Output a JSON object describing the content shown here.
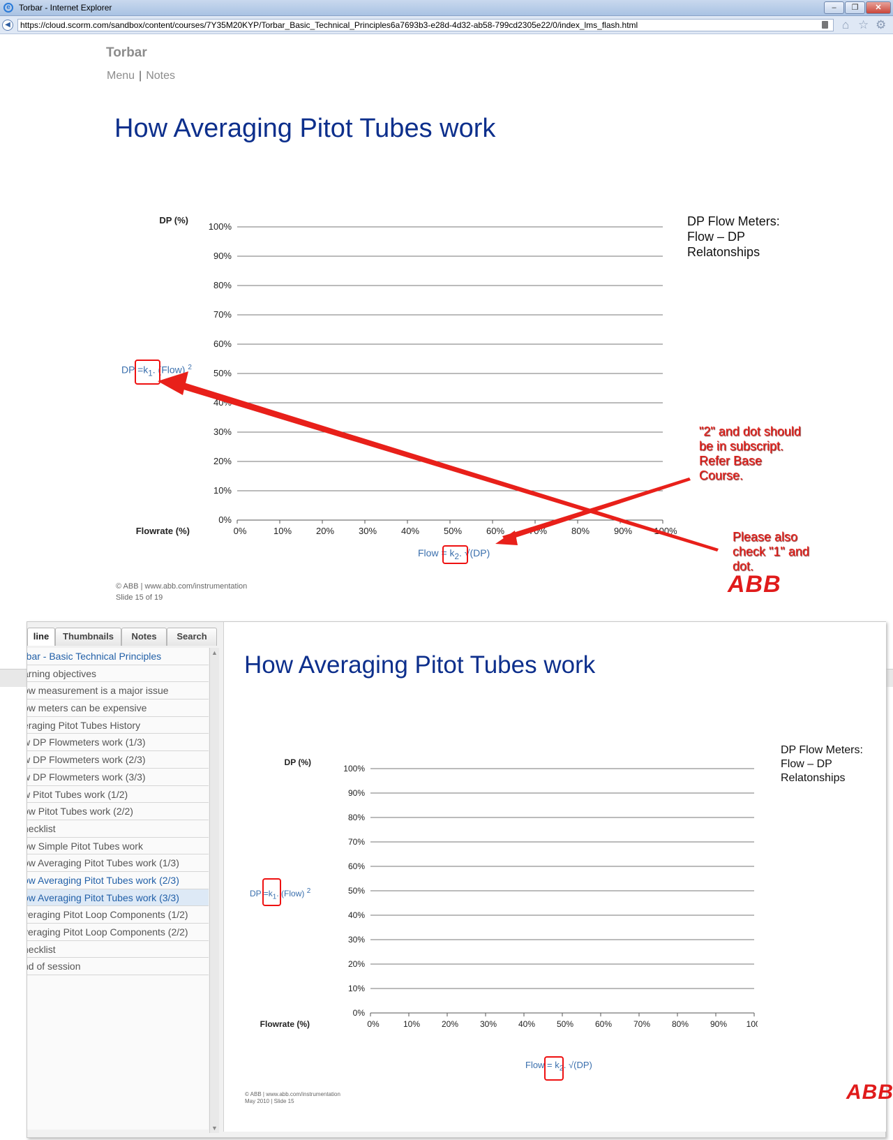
{
  "window": {
    "title": "Torbar - Internet Explorer",
    "url": "https://cloud.scorm.com/sandbox/content/courses/7Y35M20KYP/Torbar_Basic_Technical_Principles6a7693b3-e28d-4d32-ab58-799cd2305e22/0/index_lms_flash.html",
    "buttons": {
      "min": "–",
      "max": "❐",
      "close": "✕"
    }
  },
  "course": {
    "title": "Torbar",
    "nav_menu": "Menu",
    "nav_sep": "|",
    "nav_notes": "Notes"
  },
  "slide": {
    "title": "How Averaging Pitot Tubes work",
    "side_note_lines": [
      "DP Flow Meters:",
      "Flow – DP",
      "Relatonships"
    ],
    "formula_dp_prefix": "DP =k",
    "formula_dp_sub": "1",
    "formula_dp_mid": ". (Flow)",
    "formula_dp_sup": "2",
    "formula_flow_prefix": "Flow = k",
    "formula_flow_sub": "2",
    "formula_flow_mid": ". √(DP)",
    "copyright_line1": "© ABB | www.abb.com/instrumentation",
    "copyright_line2": "Slide 15 of 19",
    "copyright2_line1": "© ABB | www.abb.com/instrumentation",
    "copyright2_line2": "May 2010 | Slide 15",
    "logo": "ABB"
  },
  "annotations": {
    "note1": "\"2\" and dot should be in subscript. Refer Base Course.",
    "note2": "Please also check \"1\" and dot."
  },
  "chart_data": [
    {
      "type": "line",
      "title": "",
      "ylabel": "DP (%)",
      "xlabel": "Flowrate (%)",
      "x_ticks": [
        "0%",
        "10%",
        "20%",
        "30%",
        "40%",
        "50%",
        "60%",
        "70%",
        "80%",
        "90%",
        "100%"
      ],
      "y_ticks": [
        "0%",
        "10%",
        "20%",
        "30%",
        "40%",
        "50%",
        "60%",
        "70%",
        "80%",
        "90%",
        "100%"
      ],
      "xlim": [
        0,
        100
      ],
      "ylim": [
        0,
        100
      ],
      "grid": "horizontal",
      "series": []
    }
  ],
  "player": {
    "tabs": [
      "line",
      "Thumbnails",
      "Notes",
      "Search"
    ],
    "outline": [
      {
        "label": "rbar - Basic Technical Principles",
        "state": "link"
      },
      {
        "label": "arning objectives",
        "state": ""
      },
      {
        "label": "ow measurement is a major issue",
        "state": ""
      },
      {
        "label": "ow meters can be expensive",
        "state": ""
      },
      {
        "label": "eraging Pitot Tubes History",
        "state": ""
      },
      {
        "label": "w DP Flowmeters work (1/3)",
        "state": ""
      },
      {
        "label": "w DP Flowmeters work (2/3)",
        "state": ""
      },
      {
        "label": "w DP Flowmeters work (3/3)",
        "state": ""
      },
      {
        "label": "w Pitot Tubes work (1/2)",
        "state": ""
      },
      {
        "label": "ow Pitot Tubes work (2/2)",
        "state": ""
      },
      {
        "label": "hecklist",
        "state": ""
      },
      {
        "label": "ow Simple Pitot Tubes work",
        "state": ""
      },
      {
        "label": "ow Averaging Pitot Tubes work (1/3)",
        "state": ""
      },
      {
        "label": "ow Averaging Pitot Tubes work (2/3)",
        "state": "link"
      },
      {
        "label": "ow Averaging Pitot Tubes work (3/3)",
        "state": "selected"
      },
      {
        "label": "veraging Pitot Loop Components (1/2)",
        "state": ""
      },
      {
        "label": "veraging Pitot Loop Components (2/2)",
        "state": ""
      },
      {
        "label": "hecklist",
        "state": ""
      },
      {
        "label": "nd of session",
        "state": ""
      }
    ]
  },
  "colors": {
    "title_blue": "#0d2f8c",
    "formula_blue": "#3a6fad",
    "annotation_red": "#e8201a",
    "abb_red": "#e01b1b"
  }
}
